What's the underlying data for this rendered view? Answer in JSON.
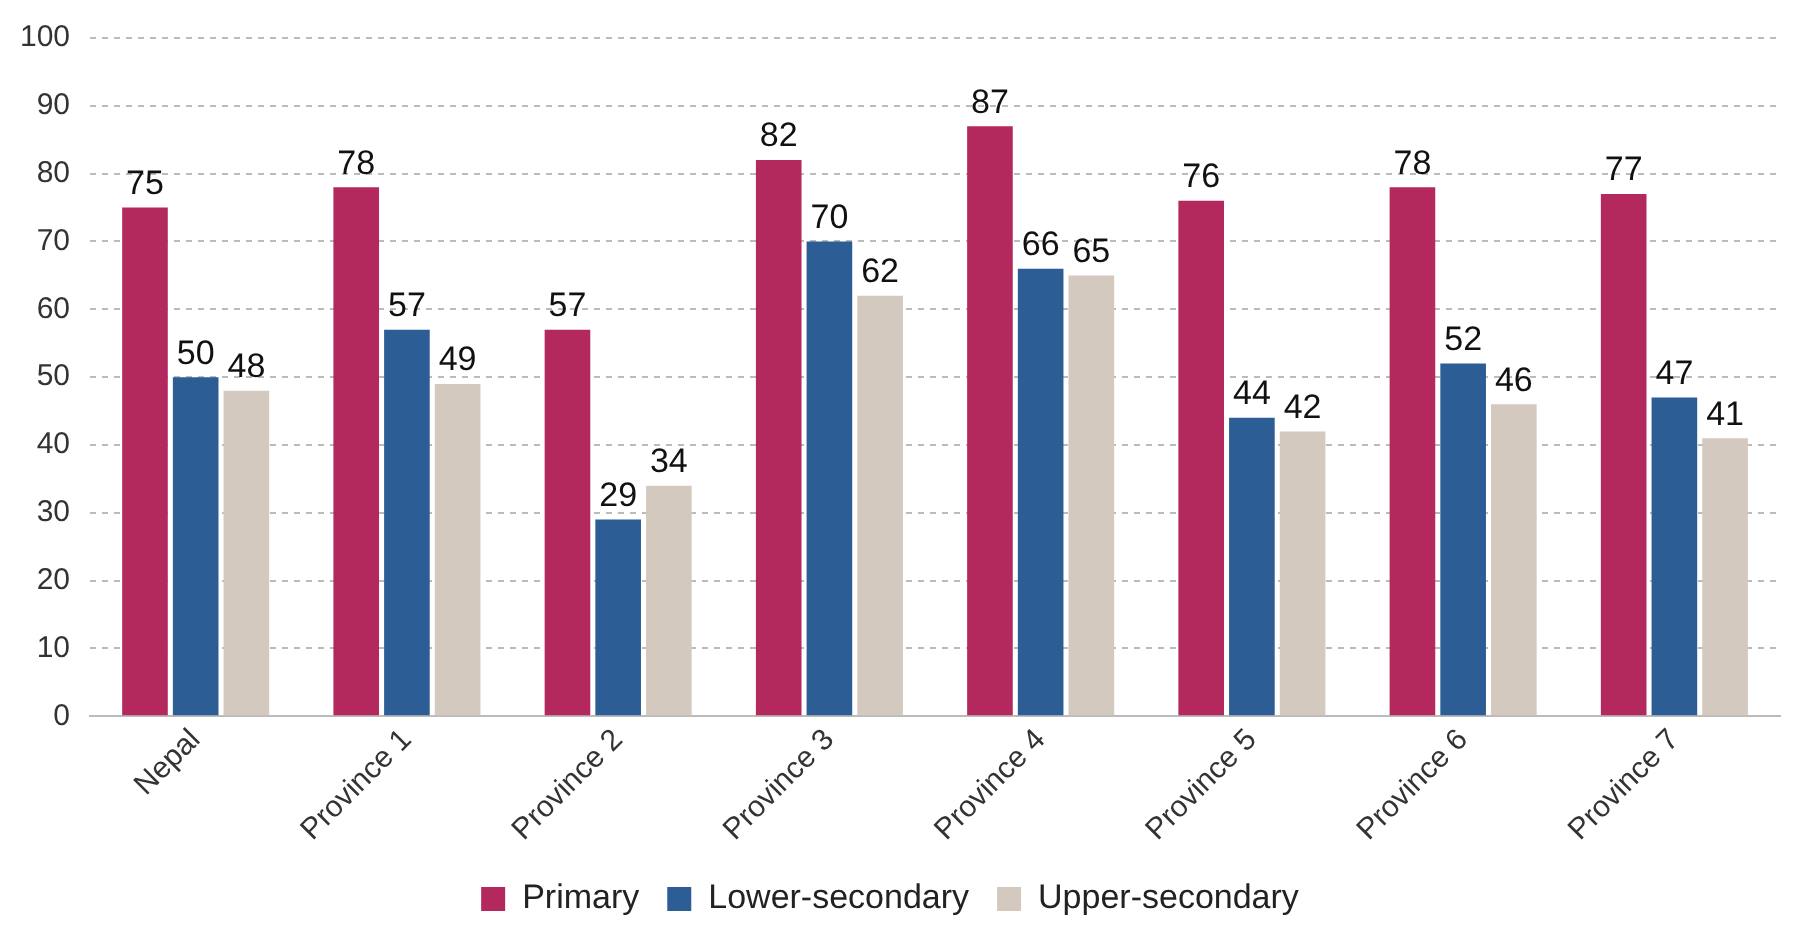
{
  "chart_data": {
    "type": "bar",
    "categories": [
      "Nepal",
      "Province 1",
      "Province 2",
      "Province 3",
      "Province 4",
      "Province 5",
      "Province 6",
      "Province 7"
    ],
    "series": [
      {
        "name": "Primary",
        "color": "#b3295e",
        "values": [
          75,
          78,
          57,
          82,
          87,
          76,
          78,
          77
        ]
      },
      {
        "name": "Lower-secondary",
        "color": "#2c5d94",
        "values": [
          50,
          57,
          29,
          70,
          66,
          44,
          52,
          47
        ]
      },
      {
        "name": "Upper-secondary",
        "color": "#d3c9bf",
        "values": [
          48,
          49,
          34,
          62,
          65,
          42,
          46,
          41
        ]
      }
    ],
    "ylim": [
      0,
      100
    ],
    "yticks": [
      0,
      10,
      20,
      30,
      40,
      50,
      60,
      70,
      80,
      90,
      100
    ],
    "grid": "y",
    "legend": "bottom",
    "data_labels": true
  }
}
